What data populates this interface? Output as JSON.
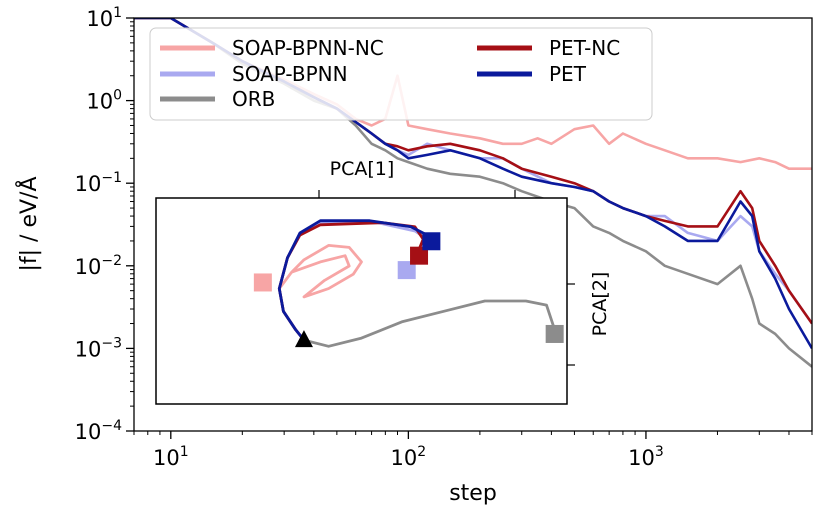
{
  "chart_data": {
    "type": "line",
    "title": "",
    "xlabel": "step",
    "ylabel": "|f| / eV/Å",
    "xscale": "log",
    "yscale": "log",
    "xlim": [
      7,
      5000
    ],
    "ylim": [
      0.0001,
      10
    ],
    "x_ticks": [
      {
        "value": 10,
        "base": "10",
        "exp": "1"
      },
      {
        "value": 100,
        "base": "10",
        "exp": "2"
      },
      {
        "value": 1000,
        "base": "10",
        "exp": "3"
      }
    ],
    "y_ticks": [
      {
        "value": 10,
        "base": "10",
        "exp": "1"
      },
      {
        "value": 1,
        "base": "10",
        "exp": "0"
      },
      {
        "value": 0.1,
        "base": "10",
        "exp": "−1"
      },
      {
        "value": 0.01,
        "base": "10",
        "exp": "−2"
      },
      {
        "value": 0.001,
        "base": "10",
        "exp": "−3"
      },
      {
        "value": 0.0001,
        "base": "10",
        "exp": "−4"
      }
    ],
    "legend": {
      "placement": "top-left",
      "columns": 2
    },
    "series": [
      {
        "name": "SOAP-BPNN-NC",
        "color": "#f7a5a5",
        "x": [
          7,
          10,
          15,
          20,
          30,
          40,
          50,
          60,
          70,
          80,
          90,
          100,
          120,
          150,
          200,
          250,
          300,
          350,
          400,
          500,
          600,
          700,
          800,
          1000,
          1200,
          1500,
          2000,
          2500,
          3000,
          3500,
          4000,
          5000
        ],
        "y": [
          10,
          10,
          5,
          3,
          1.8,
          1.2,
          0.9,
          0.6,
          0.5,
          0.6,
          2,
          0.5,
          0.45,
          0.4,
          0.35,
          0.3,
          0.3,
          0.35,
          0.3,
          0.45,
          0.5,
          0.3,
          0.4,
          0.3,
          0.25,
          0.2,
          0.2,
          0.18,
          0.2,
          0.18,
          0.15,
          0.15
        ]
      },
      {
        "name": "SOAP-BPNN",
        "color": "#a9a9f0",
        "x": [
          7,
          10,
          15,
          20,
          30,
          40,
          50,
          60,
          70,
          80,
          90,
          100,
          120,
          150,
          200,
          250,
          300,
          400,
          500,
          600,
          700,
          800,
          1000,
          1200,
          1500,
          2000,
          2500,
          2800,
          3000,
          3500,
          4000,
          5000
        ],
        "y": [
          10,
          10,
          5,
          3,
          1.7,
          1.1,
          0.8,
          0.55,
          0.4,
          0.3,
          0.25,
          0.22,
          0.3,
          0.25,
          0.2,
          0.2,
          0.15,
          0.1,
          0.09,
          0.08,
          0.06,
          0.05,
          0.04,
          0.04,
          0.025,
          0.02,
          0.04,
          0.03,
          0.015,
          0.008,
          0.005,
          0.002
        ]
      },
      {
        "name": "ORB",
        "color": "#8c8c8c",
        "x": [
          7,
          10,
          15,
          20,
          30,
          40,
          50,
          60,
          70,
          80,
          90,
          100,
          120,
          150,
          200,
          250,
          300,
          400,
          500,
          600,
          700,
          800,
          1000,
          1200,
          1500,
          2000,
          2500,
          2800,
          3000,
          3500,
          4000,
          5000
        ],
        "y": [
          10,
          10,
          5,
          2.8,
          1.6,
          1.0,
          0.8,
          0.5,
          0.3,
          0.25,
          0.2,
          0.18,
          0.15,
          0.13,
          0.12,
          0.1,
          0.08,
          0.06,
          0.05,
          0.03,
          0.025,
          0.02,
          0.015,
          0.01,
          0.008,
          0.006,
          0.01,
          0.004,
          0.002,
          0.0015,
          0.001,
          0.0006
        ]
      },
      {
        "name": "PET-NC",
        "color": "#a50f15",
        "x": [
          7,
          10,
          15,
          20,
          30,
          40,
          50,
          60,
          70,
          80,
          90,
          100,
          120,
          150,
          200,
          250,
          300,
          400,
          500,
          600,
          700,
          800,
          1000,
          1200,
          1500,
          2000,
          2500,
          2800,
          3000,
          3500,
          4000,
          5000
        ],
        "y": [
          10,
          10,
          5,
          3,
          1.7,
          1.1,
          0.8,
          0.55,
          0.4,
          0.3,
          0.28,
          0.25,
          0.28,
          0.3,
          0.25,
          0.2,
          0.15,
          0.12,
          0.1,
          0.08,
          0.06,
          0.05,
          0.04,
          0.035,
          0.03,
          0.03,
          0.08,
          0.05,
          0.02,
          0.01,
          0.005,
          0.002
        ]
      },
      {
        "name": "PET",
        "color": "#0b1a9c",
        "x": [
          7,
          10,
          15,
          20,
          30,
          40,
          50,
          60,
          70,
          80,
          90,
          100,
          120,
          150,
          200,
          250,
          300,
          400,
          500,
          600,
          700,
          800,
          1000,
          1200,
          1500,
          2000,
          2500,
          2800,
          3000,
          3500,
          4000,
          5000
        ],
        "y": [
          10,
          10,
          5,
          3,
          1.7,
          1.1,
          0.8,
          0.55,
          0.4,
          0.3,
          0.25,
          0.2,
          0.22,
          0.25,
          0.2,
          0.15,
          0.12,
          0.1,
          0.09,
          0.08,
          0.06,
          0.05,
          0.04,
          0.03,
          0.02,
          0.02,
          0.06,
          0.04,
          0.015,
          0.007,
          0.003,
          0.001
        ]
      }
    ],
    "inset": {
      "type": "trajectory",
      "xlabel": "PCA[1]",
      "ylabel": "PCA[2]",
      "xlim": [
        0,
        10
      ],
      "ylim": [
        0,
        10
      ],
      "start_marker": {
        "shape": "triangle",
        "color": "#000000",
        "x": 3.6,
        "y": 3.1
      },
      "paths": [
        {
          "name": "SOAP-BPNN-NC",
          "color": "#f7a5a5",
          "points": [
            [
              3.6,
              3.1
            ],
            [
              3.4,
              3.6
            ],
            [
              3.1,
              4.5
            ],
            [
              3.0,
              5.6
            ],
            [
              3.3,
              6.4
            ],
            [
              4.0,
              6.9
            ],
            [
              4.6,
              7.2
            ],
            [
              4.7,
              6.7
            ],
            [
              4.1,
              6.0
            ],
            [
              3.6,
              5.2
            ],
            [
              4.2,
              5.6
            ],
            [
              4.8,
              6.3
            ],
            [
              5.0,
              6.9
            ],
            [
              4.7,
              7.6
            ],
            [
              4.2,
              7.7
            ],
            [
              3.6,
              7.0
            ],
            [
              3.3,
              6.4
            ]
          ],
          "end": [
            2.6,
            5.9
          ]
        },
        {
          "name": "SOAP-BPNN",
          "color": "#a9a9f0",
          "points": [
            [
              3.6,
              3.1
            ],
            [
              3.4,
              3.6
            ],
            [
              3.1,
              4.5
            ],
            [
              3.0,
              5.6
            ],
            [
              3.2,
              7.1
            ],
            [
              3.5,
              8.2
            ],
            [
              4.0,
              8.8
            ],
            [
              5.4,
              8.8
            ],
            [
              6.3,
              8.4
            ],
            [
              6.6,
              8.0
            ],
            [
              6.3,
              7.1
            ]
          ],
          "end": [
            6.1,
            6.5
          ]
        },
        {
          "name": "ORB",
          "color": "#8c8c8c",
          "points": [
            [
              3.6,
              3.1
            ],
            [
              4.2,
              2.8
            ],
            [
              5.0,
              3.2
            ],
            [
              6.0,
              4.0
            ],
            [
              7.0,
              4.5
            ],
            [
              8.0,
              5.0
            ],
            [
              9.0,
              5.0
            ],
            [
              9.5,
              4.8
            ],
            [
              9.7,
              3.6
            ]
          ],
          "end": [
            9.7,
            3.4
          ]
        },
        {
          "name": "PET-NC",
          "color": "#a50f15",
          "points": [
            [
              3.6,
              3.1
            ],
            [
              3.4,
              3.6
            ],
            [
              3.1,
              4.5
            ],
            [
              3.0,
              5.6
            ],
            [
              3.2,
              7.1
            ],
            [
              3.5,
              8.2
            ],
            [
              4.0,
              8.7
            ],
            [
              5.5,
              8.8
            ],
            [
              6.3,
              8.6
            ],
            [
              6.5,
              8.0
            ],
            [
              6.4,
              7.5
            ]
          ],
          "end": [
            6.4,
            7.2
          ]
        },
        {
          "name": "PET",
          "color": "#0b1a9c",
          "points": [
            [
              3.6,
              3.1
            ],
            [
              3.4,
              3.6
            ],
            [
              3.1,
              4.5
            ],
            [
              3.0,
              5.6
            ],
            [
              3.2,
              7.1
            ],
            [
              3.5,
              8.3
            ],
            [
              4.0,
              8.9
            ],
            [
              5.2,
              8.9
            ],
            [
              6.2,
              8.6
            ],
            [
              6.6,
              8.2
            ]
          ],
          "end": [
            6.7,
            7.9
          ]
        }
      ]
    }
  }
}
